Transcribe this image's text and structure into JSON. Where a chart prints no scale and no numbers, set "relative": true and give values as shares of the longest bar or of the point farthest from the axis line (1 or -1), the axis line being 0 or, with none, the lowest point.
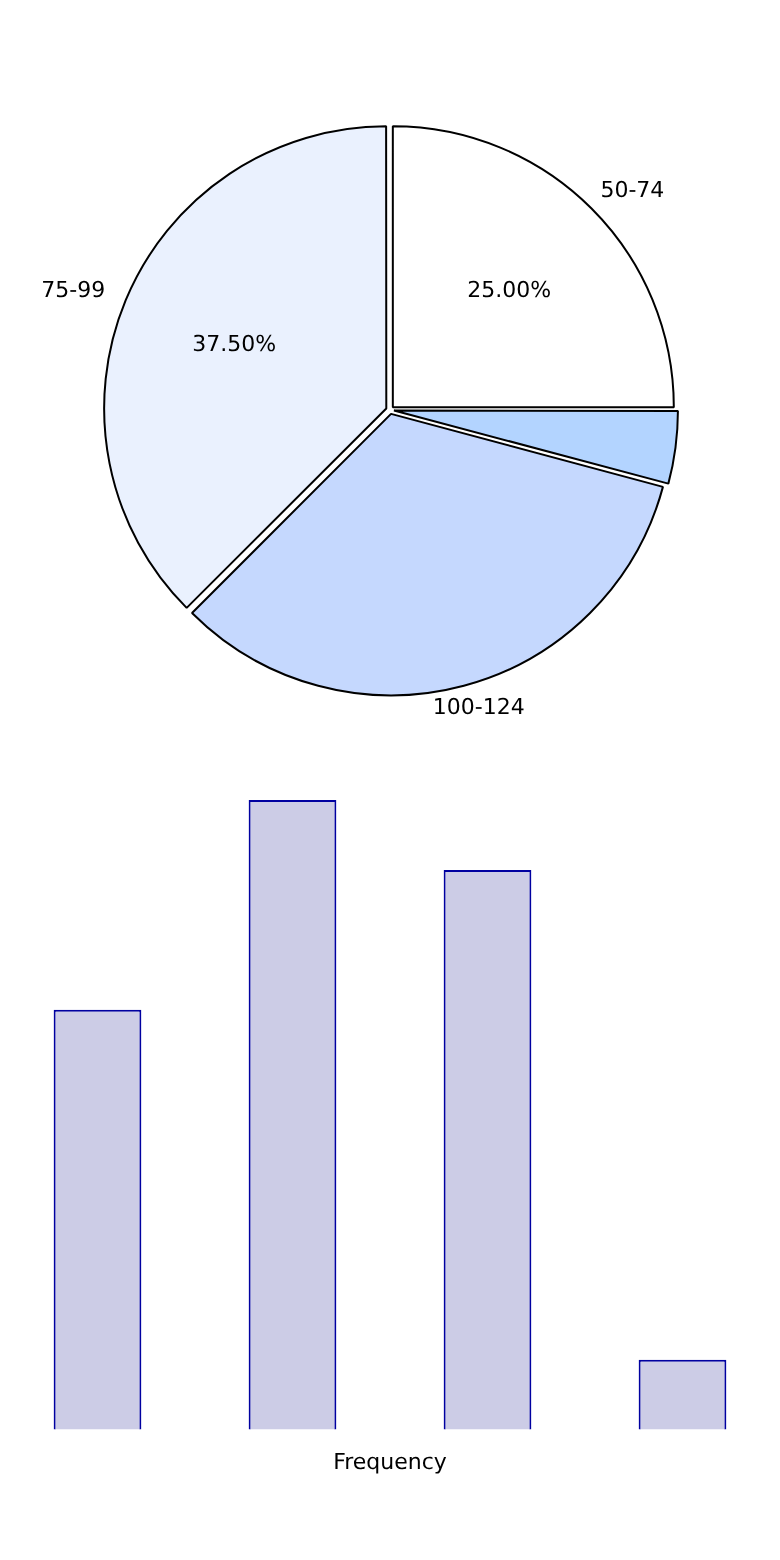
{
  "chart_data": [
    {
      "type": "pie",
      "categories": [
        "50-74",
        null,
        "100-124",
        "75-99"
      ],
      "values": [
        25,
        4.17,
        33.33,
        37.5
      ],
      "colors": [
        "#ffffff",
        "#b3d4ff",
        "#c5d8fe",
        "#eaf1fe"
      ],
      "value_labels": [
        "25.00%",
        null,
        null,
        "37.50%"
      ],
      "legend": false
    },
    {
      "type": "bar",
      "categories": [
        null,
        null,
        null,
        null
      ],
      "values": [
        0.667,
        1,
        0.889,
        0.111
      ],
      "color": "#cccce6",
      "relative": true,
      "xlabel": "Frequency",
      "legend": false
    }
  ]
}
